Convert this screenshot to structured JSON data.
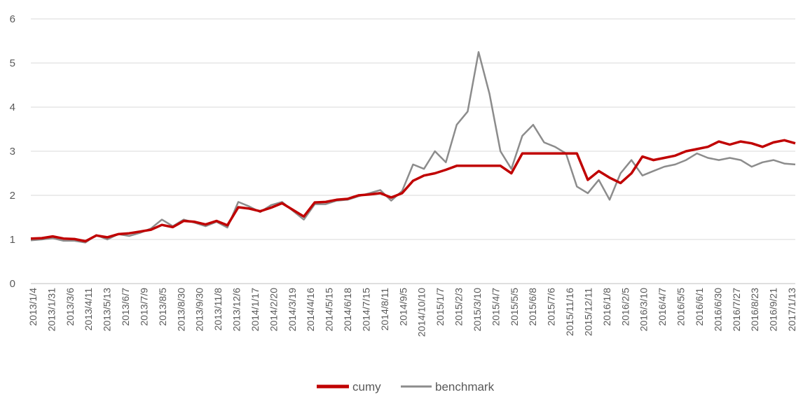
{
  "chart_data": {
    "type": "line",
    "title": "",
    "xlabel": "",
    "ylabel": "",
    "ylim": [
      0,
      6
    ],
    "y_ticks": [
      "0",
      "1",
      "2",
      "3",
      "4",
      "5",
      "6"
    ],
    "grid": true,
    "legend_position": "bottom",
    "x_tick_labels": [
      "2013/1/4",
      "2013/1/31",
      "2013/3/6",
      "2013/4/11",
      "2013/5/13",
      "2013/6/7",
      "2013/7/9",
      "2013/8/5",
      "2013/8/30",
      "2013/9/30",
      "2013/11/8",
      "2013/12/6",
      "2014/1/17",
      "2014/2/20",
      "2014/3/19",
      "2014/4/16",
      "2014/5/15",
      "2014/6/18",
      "2014/7/15",
      "2014/8/11",
      "2014/9/5",
      "2014/10/10",
      "2015/1/7",
      "2015/2/3",
      "2015/3/10",
      "2015/4/7",
      "2015/5/5",
      "2015/6/8",
      "2015/7/6",
      "2015/11/16",
      "2015/12/11",
      "2016/1/8",
      "2016/2/5",
      "2016/3/10",
      "2016/4/7",
      "2016/5/5",
      "2016/6/1",
      "2016/6/30",
      "2016/7/27",
      "2016/8/23",
      "2016/9/21",
      "2017/1/13"
    ],
    "series": [
      {
        "name": "cumy",
        "color": "#c00000",
        "values": [
          [
            0,
            1.02
          ],
          [
            1,
            1.03
          ],
          [
            2,
            1.07
          ],
          [
            3,
            1.02
          ],
          [
            4,
            1.01
          ],
          [
            5,
            0.96
          ],
          [
            6,
            1.09
          ],
          [
            7,
            1.05
          ],
          [
            8,
            1.12
          ],
          [
            9,
            1.14
          ],
          [
            10,
            1.18
          ],
          [
            11,
            1.22
          ],
          [
            12,
            1.33
          ],
          [
            13,
            1.28
          ],
          [
            14,
            1.42
          ],
          [
            15,
            1.4
          ],
          [
            16,
            1.34
          ],
          [
            17,
            1.42
          ],
          [
            18,
            1.32
          ],
          [
            19,
            1.73
          ],
          [
            20,
            1.7
          ],
          [
            21,
            1.64
          ],
          [
            22,
            1.72
          ],
          [
            23,
            1.82
          ],
          [
            24,
            1.67
          ],
          [
            25,
            1.52
          ],
          [
            26,
            1.84
          ],
          [
            27,
            1.85
          ],
          [
            28,
            1.9
          ],
          [
            29,
            1.92
          ],
          [
            30,
            2.0
          ],
          [
            31,
            2.02
          ],
          [
            32,
            2.05
          ],
          [
            33,
            1.95
          ],
          [
            34,
            2.05
          ],
          [
            35,
            2.33
          ],
          [
            36,
            2.45
          ],
          [
            37,
            2.5
          ],
          [
            38,
            2.58
          ],
          [
            39,
            2.67
          ],
          [
            40,
            2.67
          ],
          [
            41,
            2.67
          ],
          [
            42,
            2.67
          ],
          [
            43,
            2.67
          ],
          [
            44,
            2.5
          ],
          [
            45,
            2.95
          ],
          [
            46,
            2.95
          ],
          [
            47,
            2.95
          ],
          [
            48,
            2.95
          ],
          [
            49,
            2.95
          ],
          [
            50,
            2.95
          ],
          [
            51,
            2.35
          ],
          [
            52,
            2.55
          ],
          [
            53,
            2.4
          ],
          [
            54,
            2.28
          ],
          [
            55,
            2.5
          ],
          [
            56,
            2.88
          ],
          [
            57,
            2.8
          ],
          [
            58,
            2.85
          ],
          [
            59,
            2.9
          ],
          [
            60,
            3.0
          ],
          [
            61,
            3.05
          ],
          [
            62,
            3.1
          ],
          [
            63,
            3.22
          ],
          [
            64,
            3.15
          ],
          [
            65,
            3.22
          ],
          [
            66,
            3.18
          ],
          [
            67,
            3.1
          ],
          [
            68,
            3.2
          ],
          [
            69,
            3.25
          ],
          [
            70,
            3.18
          ]
        ]
      },
      {
        "name": "benchmark",
        "color": "#8c8c8c",
        "values": [
          [
            0,
            0.98
          ],
          [
            1,
            1.0
          ],
          [
            2,
            1.03
          ],
          [
            3,
            0.97
          ],
          [
            4,
            0.97
          ],
          [
            5,
            0.93
          ],
          [
            6,
            1.1
          ],
          [
            7,
            1.0
          ],
          [
            8,
            1.12
          ],
          [
            9,
            1.08
          ],
          [
            10,
            1.15
          ],
          [
            11,
            1.25
          ],
          [
            12,
            1.45
          ],
          [
            13,
            1.3
          ],
          [
            14,
            1.45
          ],
          [
            15,
            1.38
          ],
          [
            16,
            1.3
          ],
          [
            17,
            1.4
          ],
          [
            18,
            1.27
          ],
          [
            19,
            1.85
          ],
          [
            20,
            1.75
          ],
          [
            21,
            1.62
          ],
          [
            22,
            1.78
          ],
          [
            23,
            1.85
          ],
          [
            24,
            1.65
          ],
          [
            25,
            1.45
          ],
          [
            26,
            1.8
          ],
          [
            27,
            1.8
          ],
          [
            28,
            1.88
          ],
          [
            29,
            1.9
          ],
          [
            30,
            1.98
          ],
          [
            31,
            2.05
          ],
          [
            32,
            2.12
          ],
          [
            33,
            1.88
          ],
          [
            34,
            2.1
          ],
          [
            35,
            2.7
          ],
          [
            36,
            2.6
          ],
          [
            37,
            3.0
          ],
          [
            38,
            2.75
          ],
          [
            39,
            3.6
          ],
          [
            40,
            3.9
          ],
          [
            41,
            5.25
          ],
          [
            42,
            4.3
          ],
          [
            43,
            3.0
          ],
          [
            44,
            2.6
          ],
          [
            45,
            3.35
          ],
          [
            46,
            3.6
          ],
          [
            47,
            3.2
          ],
          [
            48,
            3.1
          ],
          [
            49,
            2.95
          ],
          [
            50,
            2.2
          ],
          [
            51,
            2.05
          ],
          [
            52,
            2.35
          ],
          [
            53,
            1.9
          ],
          [
            54,
            2.5
          ],
          [
            55,
            2.8
          ],
          [
            56,
            2.45
          ],
          [
            57,
            2.55
          ],
          [
            58,
            2.65
          ],
          [
            59,
            2.7
          ],
          [
            60,
            2.8
          ],
          [
            61,
            2.95
          ],
          [
            62,
            2.85
          ],
          [
            63,
            2.8
          ],
          [
            64,
            2.85
          ],
          [
            65,
            2.8
          ],
          [
            66,
            2.65
          ],
          [
            67,
            2.75
          ],
          [
            68,
            2.8
          ],
          [
            69,
            2.72
          ],
          [
            70,
            2.7
          ]
        ]
      }
    ]
  }
}
